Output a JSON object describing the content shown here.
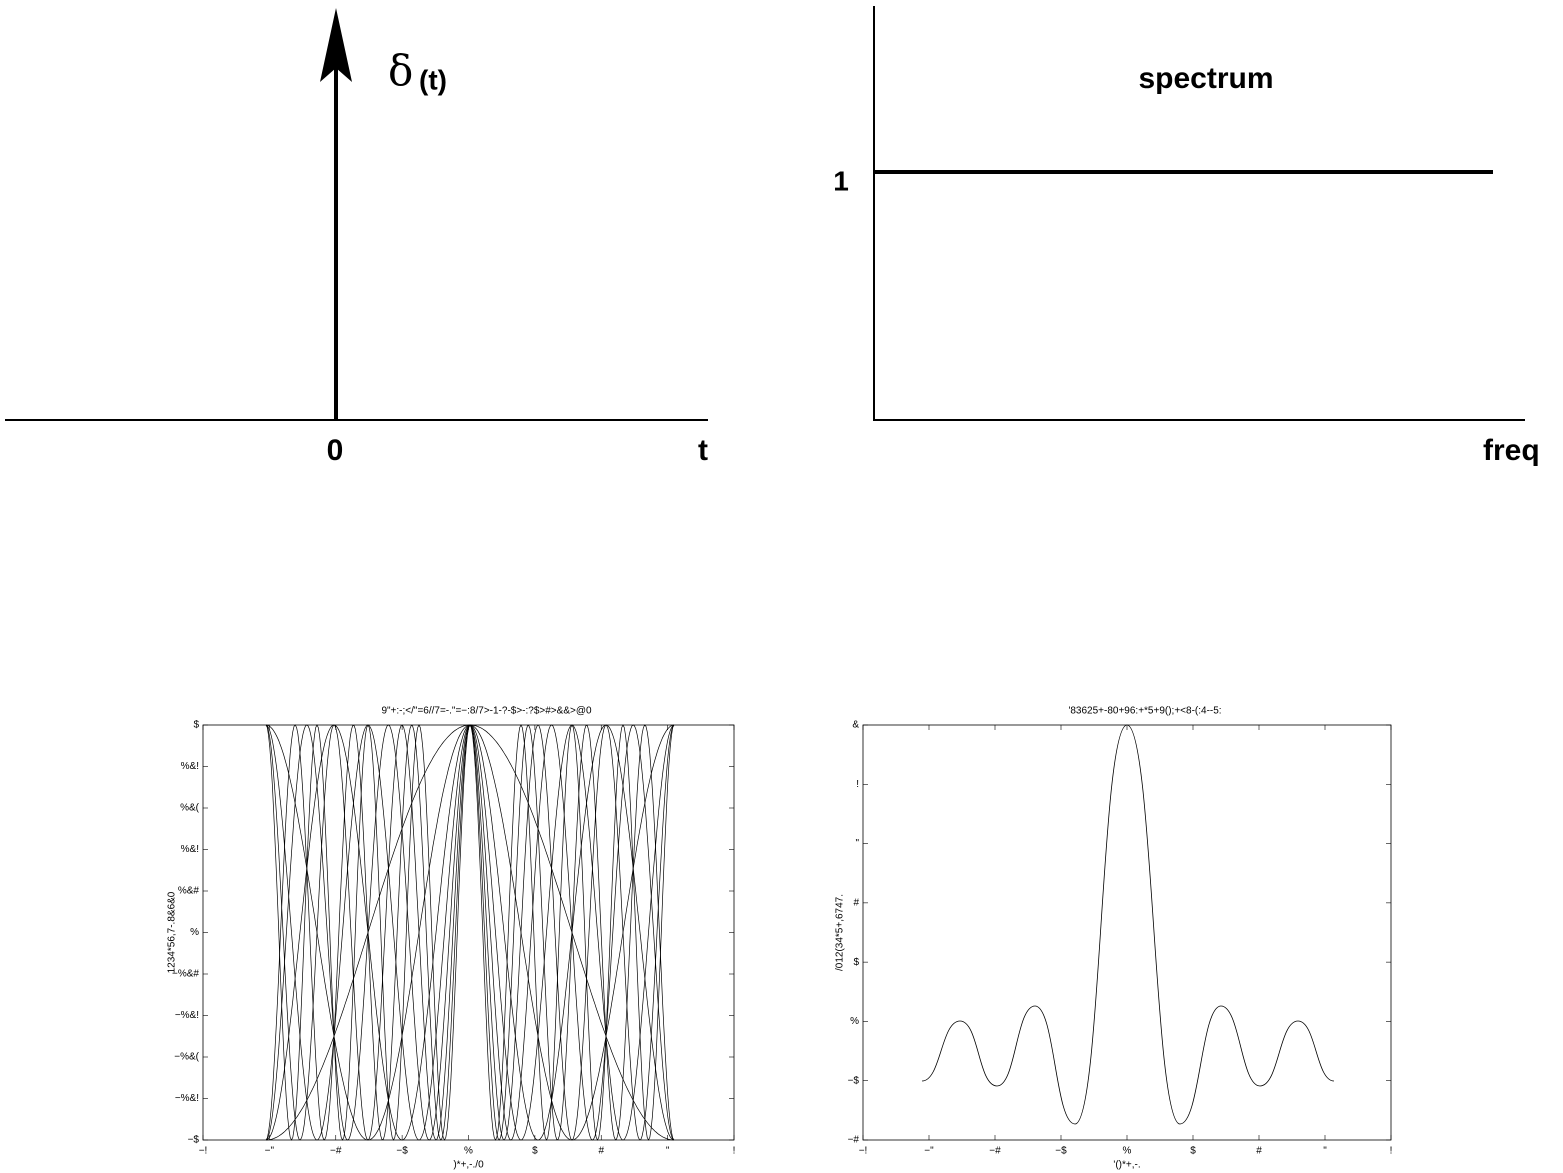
{
  "top_left": {
    "symbol": "δ",
    "argument": "(t)",
    "origin": "0",
    "axis": "t"
  },
  "top_right": {
    "title": "spectrum",
    "level": "1",
    "axis": "freq"
  },
  "bottom_left": {
    "title": "9\"+:-;</\"=6//7=-.\"=−:8/7>-1-?-$>-:?$>#>&&>@0",
    "ylabel": "1234*56,7-.8&6&0",
    "xlabel": ")*+,-./0",
    "yticks": [
      "$",
      "%&!",
      "%&(",
      "%&!",
      "%&#",
      "%",
      "−%&#",
      "−%&!",
      "−%&(",
      "−%&!",
      "−$"
    ],
    "xticks": [
      "−!",
      "−\"",
      "−#",
      "−$",
      "%",
      "$",
      "#",
      "\"",
      "!"
    ]
  },
  "bottom_right": {
    "title": "'83625+-80+96:+*5+9();+<8-(:4--5:",
    "ylabel": "/012(34*5+,6747.",
    "xlabel": "'()*+,-.",
    "yticks": [
      "&",
      "!",
      "\"",
      "#",
      "$",
      "%",
      "−$",
      "−#"
    ],
    "xticks": [
      "−!",
      "−\"",
      "−#",
      "−$",
      "%",
      "$",
      "#",
      "\"",
      "!"
    ]
  }
}
